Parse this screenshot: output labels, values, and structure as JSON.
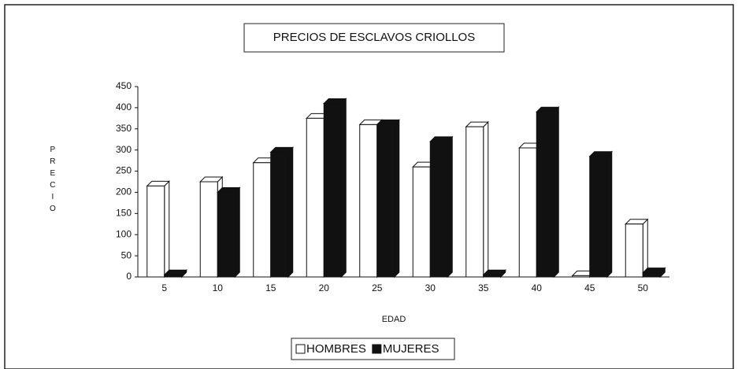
{
  "chart_data": {
    "type": "bar",
    "title": "PRECIOS DE ESCLAVOS CRIOLLOS",
    "x_label": "EDAD",
    "y_label": "PRECIO",
    "categories": [
      "5",
      "10",
      "15",
      "20",
      "25",
      "30",
      "35",
      "40",
      "45",
      "50"
    ],
    "series": [
      {
        "name": "HOMBRES",
        "color": "#ffffff",
        "values": [
          215,
          225,
          270,
          375,
          360,
          260,
          355,
          305,
          3,
          125
        ]
      },
      {
        "name": "MUJERES",
        "color": "#111111",
        "values": [
          5,
          200,
          295,
          410,
          360,
          320,
          5,
          390,
          285,
          10
        ]
      }
    ],
    "ylim": [
      0,
      450
    ],
    "yticks": [
      0,
      50,
      100,
      150,
      200,
      250,
      300,
      350,
      400,
      450
    ],
    "grid": false
  }
}
